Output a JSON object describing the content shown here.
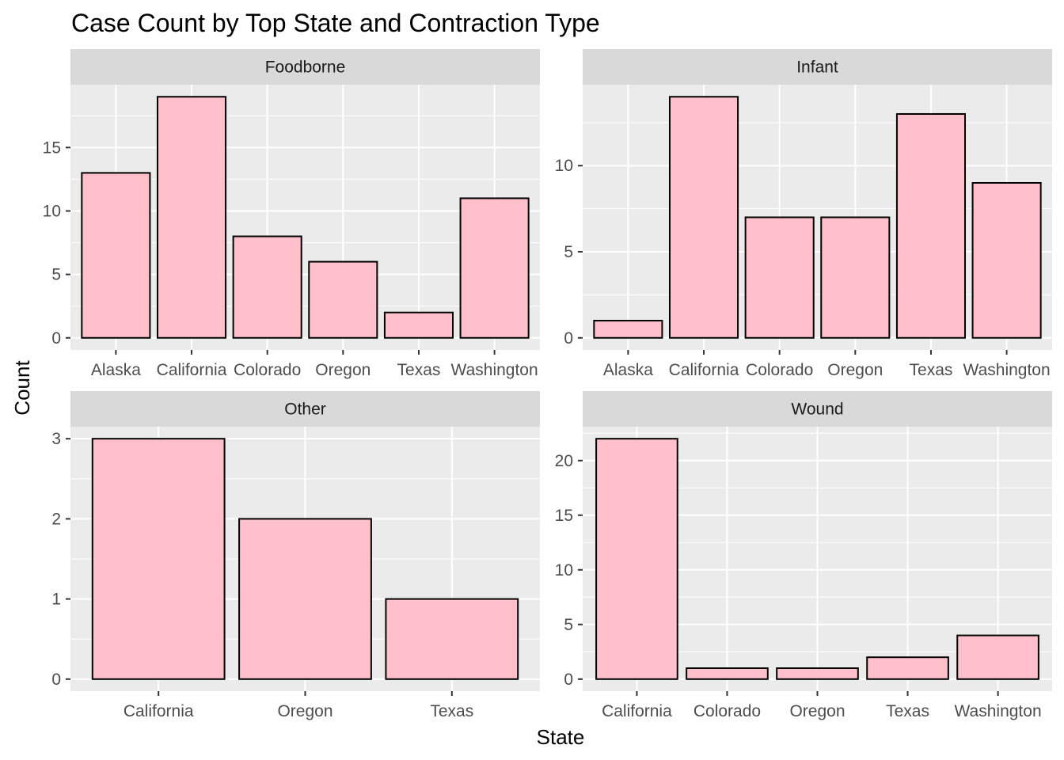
{
  "chart_data": {
    "type": "bar",
    "title": "Case Count by Top  State and Contraction Type",
    "xlabel": "State",
    "ylabel": "Count",
    "grid": true,
    "colors": {
      "bar_fill": "#FFC0CB",
      "bar_stroke": "#000000",
      "panel_bg": "#EBEBEB",
      "strip_bg": "#D9D9D9",
      "grid": "#FFFFFF"
    },
    "panels": [
      {
        "strip": "Foodborne",
        "categories": [
          "Alaska",
          "California",
          "Colorado",
          "Oregon",
          "Texas",
          "Washington"
        ],
        "values": [
          13,
          19,
          8,
          6,
          2,
          11
        ],
        "ylim": [
          -0.95,
          19.95
        ],
        "y_ticks": [
          0,
          5,
          10,
          15
        ],
        "y_tick_labels": [
          "0",
          "5",
          "10",
          "15"
        ]
      },
      {
        "strip": "Infant",
        "categories": [
          "Alaska",
          "California",
          "Colorado",
          "Oregon",
          "Texas",
          "Washington"
        ],
        "values": [
          1,
          14,
          7,
          7,
          13,
          9
        ],
        "ylim": [
          -0.7,
          14.7
        ],
        "y_ticks": [
          0,
          5,
          10
        ],
        "y_tick_labels": [
          "0",
          "5",
          "10"
        ]
      },
      {
        "strip": "Other",
        "categories": [
          "California",
          "Oregon",
          "Texas"
        ],
        "values": [
          3,
          2,
          1
        ],
        "ylim": [
          -0.15,
          3.15
        ],
        "y_ticks": [
          0,
          1,
          2,
          3
        ],
        "y_tick_labels": [
          "0",
          "1",
          "2",
          "3"
        ]
      },
      {
        "strip": "Wound",
        "categories": [
          "California",
          "Colorado",
          "Oregon",
          "Texas",
          "Washington"
        ],
        "values": [
          22,
          1,
          1,
          2,
          4
        ],
        "ylim": [
          -1.1,
          23.1
        ],
        "y_ticks": [
          0,
          5,
          10,
          15,
          20
        ],
        "y_tick_labels": [
          "0",
          "5",
          "10",
          "15",
          "20"
        ]
      }
    ]
  }
}
